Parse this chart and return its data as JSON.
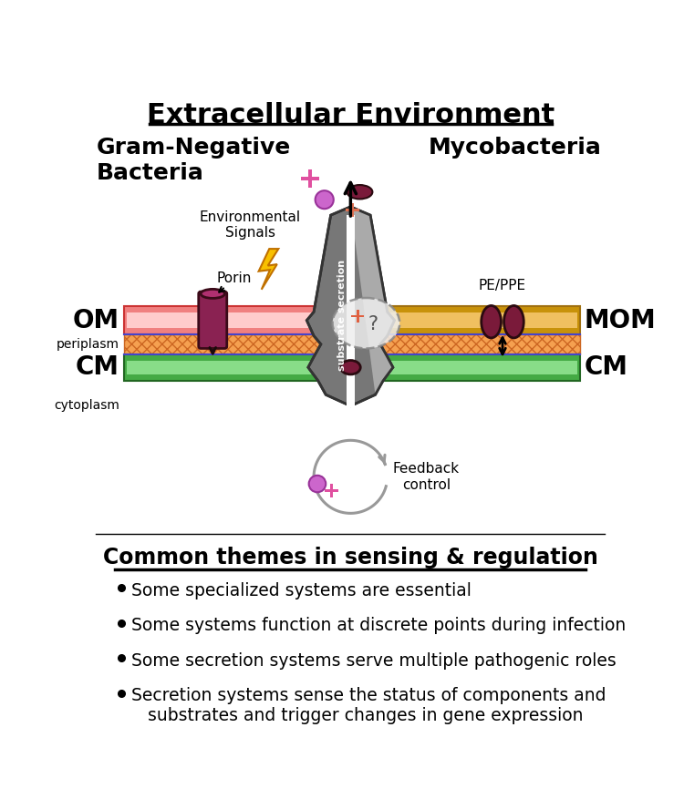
{
  "title": "Extracellular Environment",
  "subtitle_left": "Gram-Negative\nBacteria",
  "subtitle_right": "Mycobacteria",
  "label_OM": "OM",
  "label_periplasm": "periplasm",
  "label_CM_left": "CM",
  "label_cytoplasm": "cytoplasm",
  "label_MOM": "MOM",
  "label_CM_right": "CM",
  "label_porin": "Porin",
  "label_env_signals": "Environmental\nSignals",
  "label_substrate_secretion": "substrate secretion",
  "label_PE_PPE": "PE/PPE",
  "label_feedback": "Feedback\ncontrol",
  "label_question": "?",
  "bottom_title": "Common themes in sensing & regulation",
  "bullets": [
    "Some specialized systems are essential",
    "Some systems function at discrete points during infection",
    "Some secretion systems serve multiple pathogenic roles",
    "Secretion systems sense the status of components and\n   substrates and trigger changes in gene expression"
  ],
  "color_dark_red": "#7a1a3a",
  "color_pink_cross": "#e050a0",
  "color_purple_circle": "#cc66cc",
  "color_orange_cross": "#e06040",
  "color_gray_machine": "#777777",
  "color_light_gray": "#aaaaaa",
  "color_OM_band": "#f08080",
  "color_MOM_band": "#d4a020",
  "color_periplasm_hatch": "#f5a050",
  "color_CM_band": "#44aa44",
  "color_gold_lightning": "#f8c000",
  "color_dashed": "#888888"
}
